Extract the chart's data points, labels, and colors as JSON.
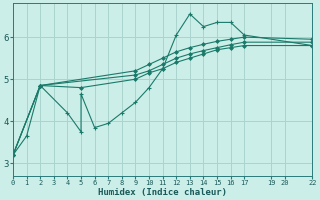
{
  "xlabel": "Humidex (Indice chaleur)",
  "bg_color": "#cceee8",
  "grid_color": "#aad4ce",
  "line_color": "#1a7a6a",
  "xlim": [
    0,
    22
  ],
  "ylim": [
    2.7,
    6.8
  ],
  "xticks": [
    0,
    1,
    2,
    3,
    4,
    5,
    6,
    7,
    8,
    9,
    10,
    11,
    12,
    13,
    14,
    15,
    16,
    17,
    19,
    20,
    22
  ],
  "yticks": [
    3,
    4,
    5,
    6
  ],
  "lines": [
    {
      "x": [
        0,
        1,
        2,
        4,
        5,
        5,
        6,
        7,
        8,
        9,
        10,
        11,
        12,
        13,
        14,
        15,
        16,
        17,
        22
      ],
      "y": [
        3.2,
        3.65,
        4.85,
        4.2,
        3.75,
        4.65,
        3.85,
        3.95,
        4.2,
        4.45,
        4.8,
        5.25,
        6.05,
        6.55,
        6.25,
        6.35,
        6.35,
        6.05,
        5.8
      ]
    },
    {
      "x": [
        0,
        2,
        5,
        9,
        10,
        11,
        12,
        13,
        14,
        15,
        16,
        17,
        22
      ],
      "y": [
        3.2,
        4.85,
        4.8,
        5.0,
        5.15,
        5.25,
        5.4,
        5.5,
        5.6,
        5.7,
        5.75,
        5.8,
        5.8
      ]
    },
    {
      "x": [
        0,
        2,
        9,
        10,
        11,
        12,
        13,
        14,
        15,
        16,
        17,
        22
      ],
      "y": [
        3.2,
        4.85,
        5.1,
        5.2,
        5.35,
        5.5,
        5.6,
        5.68,
        5.75,
        5.82,
        5.88,
        5.88
      ]
    },
    {
      "x": [
        0,
        2,
        9,
        10,
        11,
        12,
        13,
        14,
        15,
        16,
        17,
        22
      ],
      "y": [
        3.2,
        4.85,
        5.2,
        5.35,
        5.5,
        5.65,
        5.75,
        5.83,
        5.9,
        5.95,
        6.0,
        5.95
      ]
    }
  ]
}
